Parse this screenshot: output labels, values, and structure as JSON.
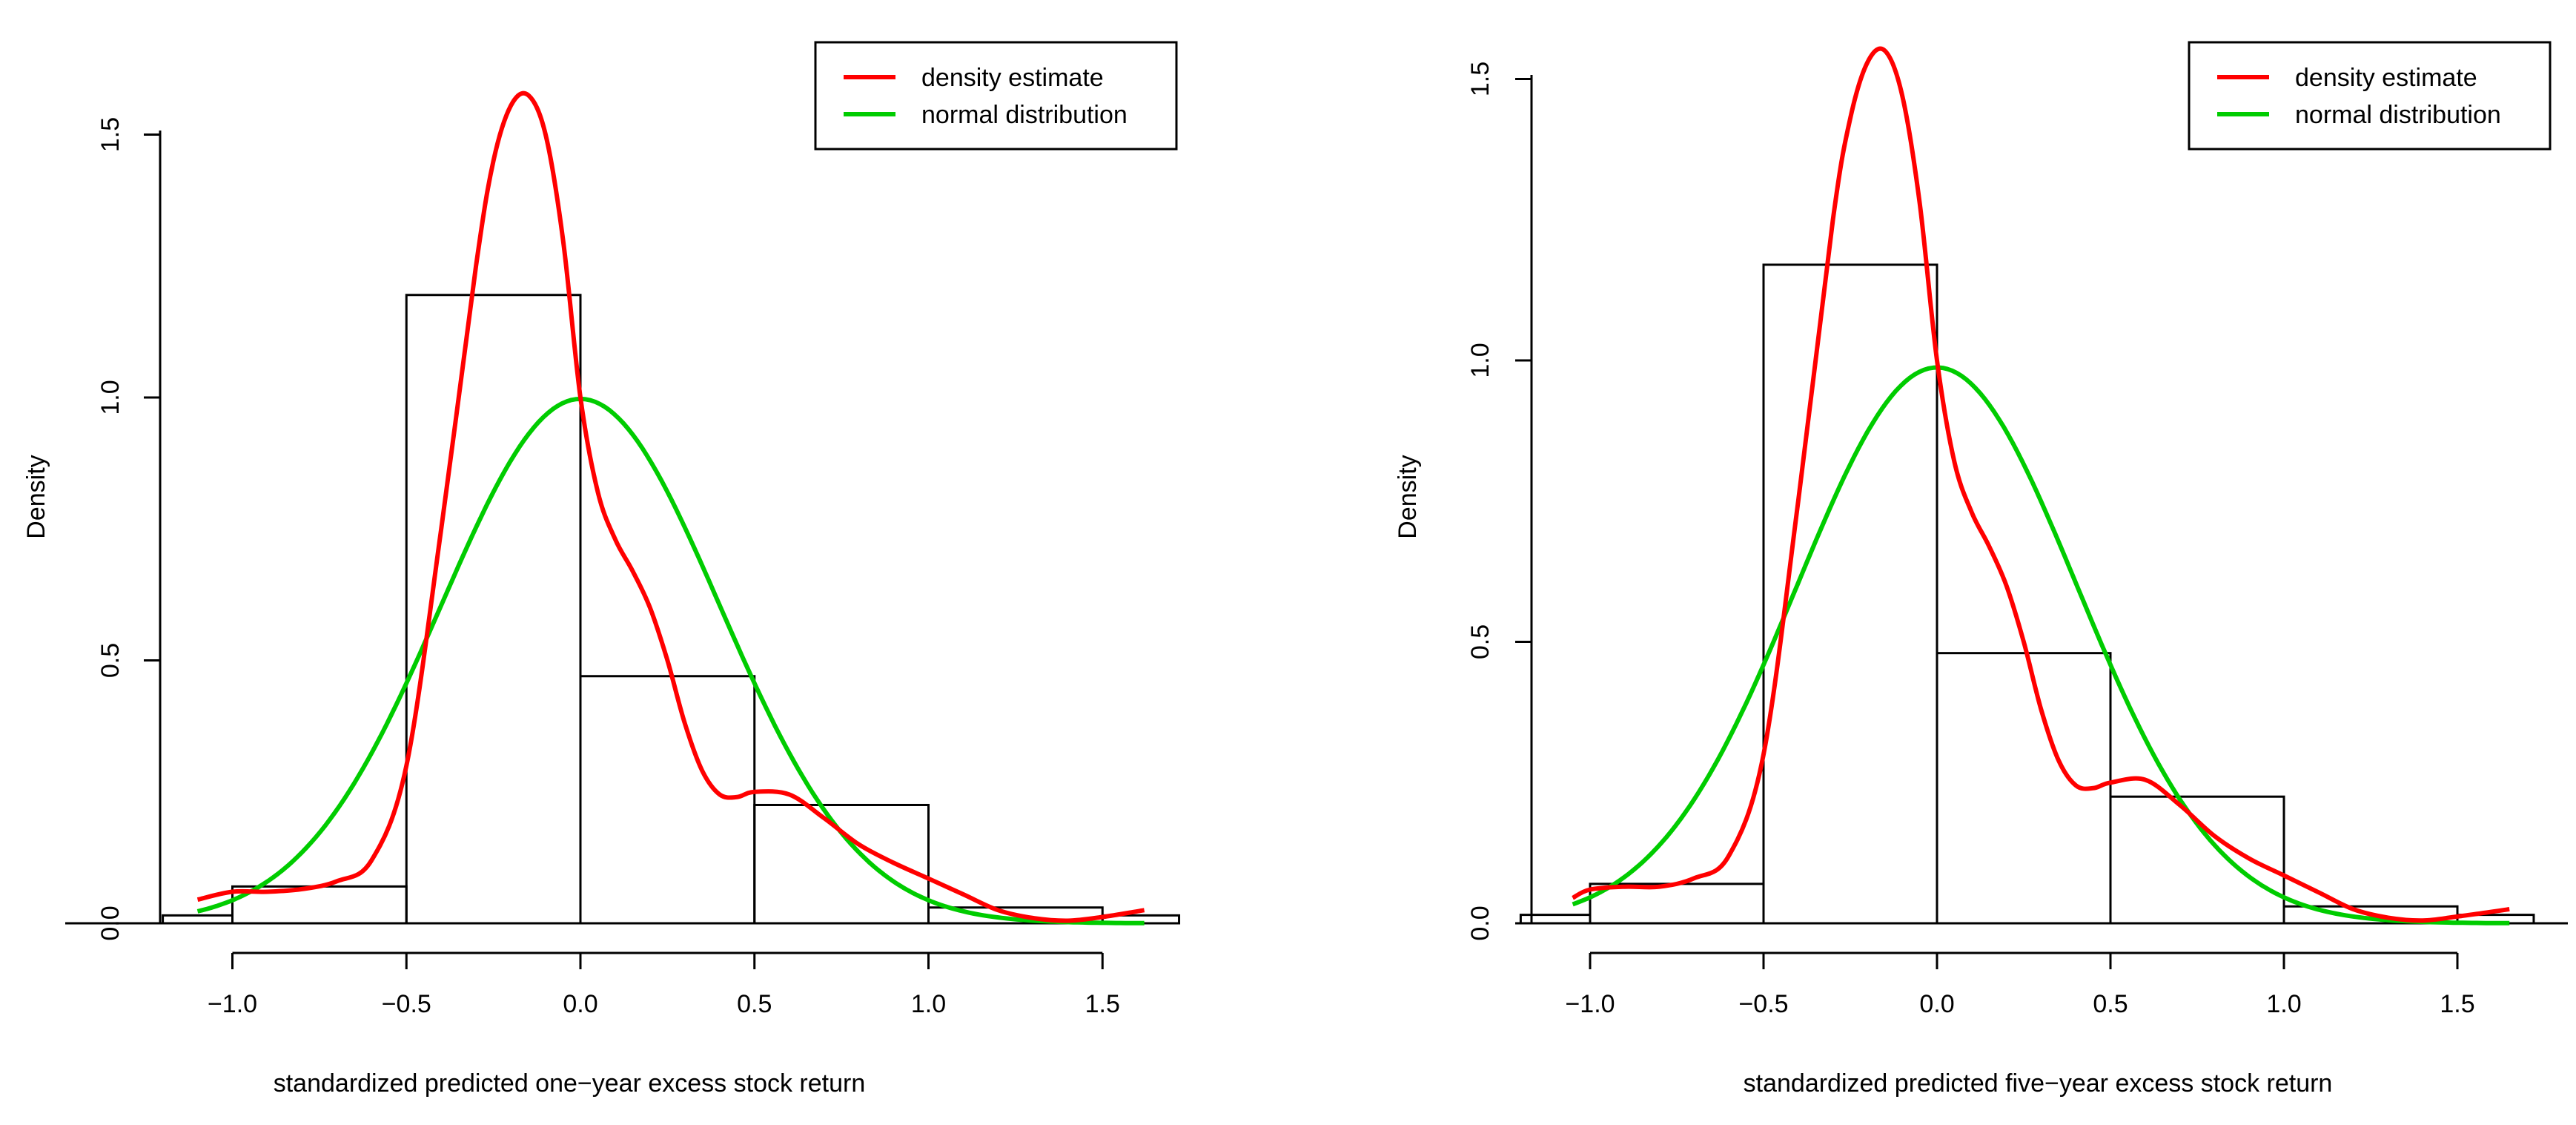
{
  "chart_data": [
    {
      "type": "bar",
      "title": "",
      "xlabel": "standardized predicted one−year excess stock return",
      "ylabel": "Density",
      "xlim": [
        -1.2,
        1.72
      ],
      "ylim": [
        0,
        1.5
      ],
      "xticks": [
        -1.0,
        -0.5,
        0.0,
        0.5,
        1.0,
        1.5
      ],
      "xtick_labels": [
        "−1.0",
        "−0.5",
        "0.0",
        "0.5",
        "1.0",
        "1.5"
      ],
      "yticks": [
        0.0,
        0.5,
        1.0,
        1.5
      ],
      "ytick_labels": [
        "0.0",
        "0.5",
        "1.0",
        "1.5"
      ],
      "histogram": {
        "bins": [
          [
            -1.2,
            -1.0
          ],
          [
            -1.0,
            -0.5
          ],
          [
            -0.5,
            0.0
          ],
          [
            0.0,
            0.5
          ],
          [
            0.5,
            1.0
          ],
          [
            1.0,
            1.5
          ],
          [
            1.5,
            1.72
          ]
        ],
        "values": [
          0.015,
          0.07,
          1.195,
          0.47,
          0.225,
          0.03,
          0.015
        ],
        "color": "#000000"
      },
      "series": [
        {
          "name": "density estimate",
          "color": "#ff0000",
          "x": [
            -1.1,
            -1.0,
            -0.9,
            -0.8,
            -0.7,
            -0.6,
            -0.5,
            -0.4,
            -0.3,
            -0.25,
            -0.2,
            -0.15,
            -0.1,
            -0.05,
            0.0,
            0.05,
            0.1,
            0.15,
            0.2,
            0.25,
            0.3,
            0.35,
            0.4,
            0.45,
            0.5,
            0.6,
            0.7,
            0.8,
            0.9,
            1.0,
            1.1,
            1.2,
            1.3,
            1.4,
            1.5,
            1.62
          ],
          "y": [
            0.045,
            0.06,
            0.06,
            0.065,
            0.08,
            0.12,
            0.3,
            0.75,
            1.25,
            1.45,
            1.555,
            1.575,
            1.5,
            1.3,
            1.0,
            0.82,
            0.73,
            0.67,
            0.6,
            0.5,
            0.38,
            0.29,
            0.245,
            0.24,
            0.25,
            0.245,
            0.2,
            0.15,
            0.115,
            0.085,
            0.055,
            0.025,
            0.01,
            0.005,
            0.012,
            0.025
          ]
        },
        {
          "name": "normal distribution",
          "color": "#00cc00",
          "mean": 0.0,
          "sd": 0.4,
          "xrange": [
            -1.1,
            1.62
          ]
        }
      ],
      "legend": {
        "position": "top-right",
        "entries": [
          "density estimate",
          "normal distribution"
        ]
      }
    },
    {
      "type": "bar",
      "title": "",
      "xlabel": "standardized predicted five−year excess stock return",
      "ylabel": "Density",
      "xlim": [
        -1.2,
        1.72
      ],
      "ylim": [
        0,
        1.5
      ],
      "xticks": [
        -1.0,
        -0.5,
        0.0,
        0.5,
        1.0,
        1.5
      ],
      "xtick_labels": [
        "−1.0",
        "−0.5",
        "0.0",
        "0.5",
        "1.0",
        "1.5"
      ],
      "yticks": [
        0.0,
        0.5,
        1.0,
        1.5
      ],
      "ytick_labels": [
        "0.0",
        "0.5",
        "1.0",
        "1.5"
      ],
      "histogram": {
        "bins": [
          [
            -1.2,
            -1.0
          ],
          [
            -1.0,
            -0.5
          ],
          [
            -0.5,
            0.0
          ],
          [
            0.0,
            0.5
          ],
          [
            0.5,
            1.0
          ],
          [
            1.0,
            1.5
          ],
          [
            1.5,
            1.72
          ]
        ],
        "values": [
          0.015,
          0.07,
          1.17,
          0.48,
          0.225,
          0.03,
          0.015
        ],
        "color": "#000000"
      },
      "series": [
        {
          "name": "density estimate",
          "color": "#ff0000",
          "x": [
            -1.05,
            -1.0,
            -0.9,
            -0.8,
            -0.7,
            -0.6,
            -0.5,
            -0.4,
            -0.3,
            -0.25,
            -0.2,
            -0.15,
            -0.1,
            -0.05,
            0.0,
            0.05,
            0.1,
            0.15,
            0.2,
            0.25,
            0.3,
            0.35,
            0.4,
            0.45,
            0.5,
            0.6,
            0.7,
            0.8,
            0.9,
            1.0,
            1.1,
            1.2,
            1.3,
            1.4,
            1.5,
            1.65
          ],
          "y": [
            0.045,
            0.06,
            0.065,
            0.065,
            0.08,
            0.12,
            0.3,
            0.75,
            1.25,
            1.43,
            1.53,
            1.55,
            1.47,
            1.28,
            1.0,
            0.82,
            0.73,
            0.67,
            0.6,
            0.5,
            0.38,
            0.29,
            0.245,
            0.24,
            0.25,
            0.255,
            0.21,
            0.155,
            0.115,
            0.085,
            0.055,
            0.025,
            0.01,
            0.005,
            0.012,
            0.025
          ]
        },
        {
          "name": "normal distribution",
          "color": "#00cc00",
          "mean": 0.0,
          "sd": 0.404,
          "xrange": [
            -1.05,
            1.65
          ]
        }
      ],
      "legend": {
        "position": "top-right",
        "entries": [
          "density estimate",
          "normal distribution"
        ]
      }
    }
  ]
}
